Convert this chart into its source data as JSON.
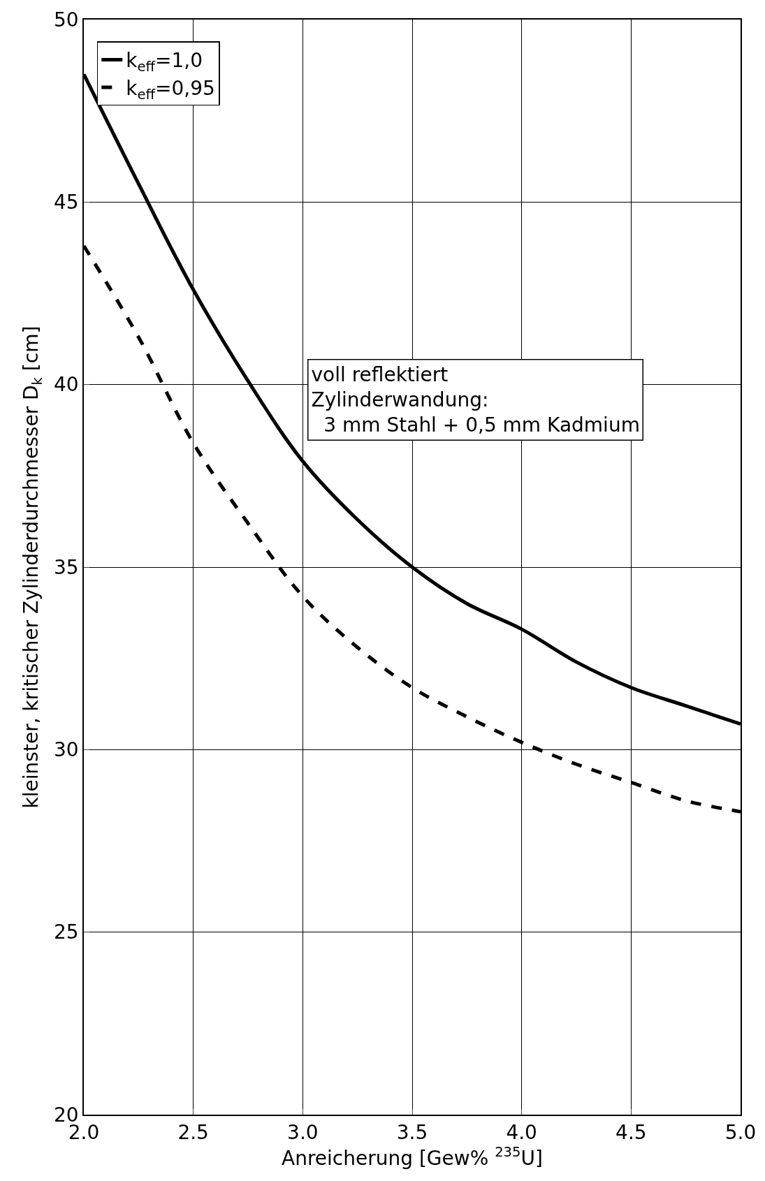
{
  "chart_data": {
    "type": "line",
    "xlabel": "Anreicherung [Gew% $^{235}$U]",
    "ylabel": "kleinster, kritischer Zylinderdurchmesser D$_{k}$ [cm]",
    "x": [
      2.0,
      2.25,
      2.5,
      2.75,
      3.0,
      3.25,
      3.5,
      3.75,
      4.0,
      4.25,
      4.5,
      4.75,
      5.0
    ],
    "series": [
      {
        "name": "k$_{eff}$=1,0",
        "color": "#000000",
        "line_style": "solid",
        "values": [
          48.5,
          45.5,
          42.6,
          40.1,
          37.9,
          36.3,
          35.0,
          34.0,
          33.3,
          32.4,
          31.7,
          31.2,
          30.7
        ]
      },
      {
        "name": "k$_{eff}$=0,95",
        "color": "#000000",
        "line_style": "dashed",
        "values": [
          43.8,
          41.3,
          38.4,
          36.2,
          34.2,
          32.8,
          31.7,
          30.9,
          30.2,
          29.6,
          29.1,
          28.6,
          28.3
        ]
      }
    ],
    "xlim": [
      2.0,
      5.0
    ],
    "xticks": [
      {
        "value": 2.0,
        "label": "2.0"
      },
      {
        "value": 2.5,
        "label": "2.5"
      },
      {
        "value": 3.0,
        "label": "3.0"
      },
      {
        "value": 3.5,
        "label": "3.5"
      },
      {
        "value": 4.0,
        "label": "4.0"
      },
      {
        "value": 4.5,
        "label": "4.5"
      },
      {
        "value": 5.0,
        "label": "5.0"
      }
    ],
    "ylim": [
      20,
      50
    ],
    "yticks": [
      20,
      25,
      30,
      35,
      40,
      45,
      50
    ],
    "grid": true,
    "legend": "top left",
    "annotations": [
      "voll reflektiert\nZylinderwandung:\n  3 mm Stahl + 0,5 mm Kadmium"
    ]
  }
}
